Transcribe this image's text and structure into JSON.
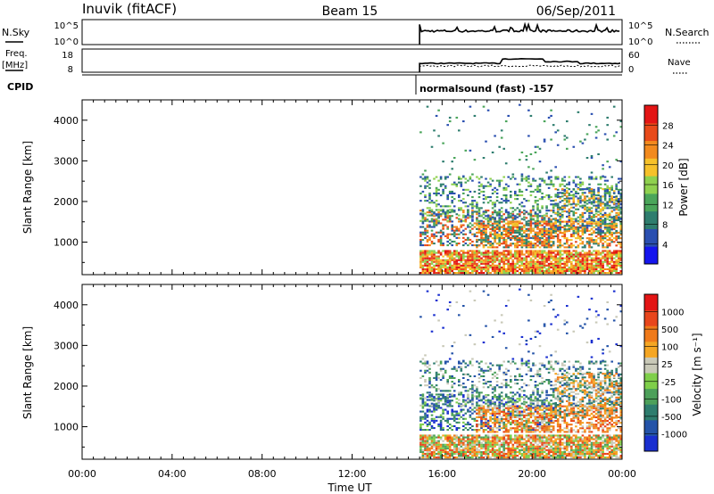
{
  "header": {
    "station": "Inuvik (fitACF)",
    "beam": "Beam 15",
    "date": "06/Sep/2011"
  },
  "chart_data": [
    {
      "type": "line",
      "name": "noise-panel",
      "ylabel_left": "N.Sky",
      "ylabel_right": "N.Search",
      "left_ticks": [
        "10^5",
        "10^0"
      ],
      "right_ticks": [
        "10^5",
        "10^0"
      ]
    },
    {
      "type": "line",
      "name": "frequency-panel",
      "ylabel_left": "Freq. [MHz]",
      "ylabel_right": "Nave",
      "left_ticks": [
        "18",
        "8"
      ],
      "right_ticks": [
        "60",
        "0"
      ]
    },
    {
      "type": "text",
      "name": "cpid-panel",
      "label": "CPID",
      "program": "normalsound (fast) -157"
    },
    {
      "type": "heatmap",
      "name": "power-panel",
      "ylabel": "Slant Range [km]",
      "yticks": [
        1000,
        2000,
        3000,
        4000
      ],
      "ylim": [
        200,
        4500
      ],
      "colorbar_label": "Power [dB]",
      "colorbar_ticks": [
        4,
        8,
        12,
        16,
        20,
        24,
        28
      ],
      "colorbar_range": [
        0,
        32
      ],
      "colors": [
        "#1515ee",
        "#2a4fb0",
        "#2e7d6e",
        "#4aa55a",
        "#8fd14f",
        "#f6c12a",
        "#f28a1e",
        "#e84a1a",
        "#e31515"
      ]
    },
    {
      "type": "heatmap",
      "name": "velocity-panel",
      "ylabel": "Slant Range [km]",
      "yticks": [
        1000,
        2000,
        3000,
        4000
      ],
      "ylim": [
        200,
        4500
      ],
      "colorbar_label": "Velocity [m s⁻¹]",
      "colorbar_ticks": [
        "1000",
        "500",
        "100",
        "25",
        "-25",
        "-100",
        "-500",
        "-1000"
      ],
      "colors": [
        "#1a2fd0",
        "#2453a8",
        "#2e7d6e",
        "#4da05a",
        "#7fcf4a",
        "#c9c9b8",
        "#f5a623",
        "#f07a1a",
        "#e8461c",
        "#e31515"
      ]
    }
  ],
  "x_axis": {
    "label": "Time UT",
    "ticks": [
      "00:00",
      "04:00",
      "08:00",
      "12:00",
      "16:00",
      "20:00",
      "00:00"
    ],
    "data_start_hour": 15.0
  }
}
